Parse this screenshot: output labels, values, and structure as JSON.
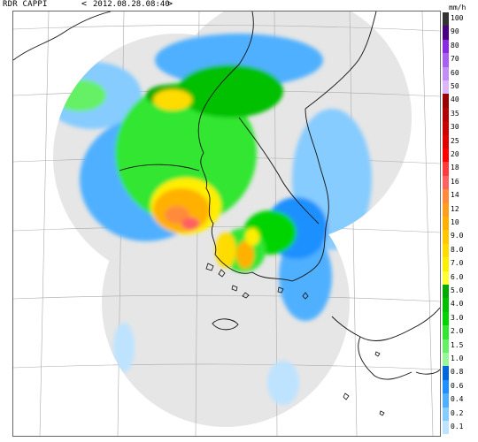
{
  "header": {
    "title": "RDR CAPPI",
    "prev_symbol": "<",
    "timestamp": "2012.08.28.08:40",
    "next_symbol": ">"
  },
  "legend": {
    "unit": "mm/h",
    "levels": [
      {
        "label": "100",
        "color": "#333333"
      },
      {
        "label": "90",
        "color": "#4b0082"
      },
      {
        "label": "80",
        "color": "#8a2be2"
      },
      {
        "label": "70",
        "color": "#a95ff0"
      },
      {
        "label": "60",
        "color": "#c48cf5"
      },
      {
        "label": "50",
        "color": "#dbb6f9"
      },
      {
        "label": "40",
        "color": "#990000"
      },
      {
        "label": "35",
        "color": "#b30000"
      },
      {
        "label": "30",
        "color": "#cc0000"
      },
      {
        "label": "25",
        "color": "#e00000"
      },
      {
        "label": "20",
        "color": "#ff0000"
      },
      {
        "label": "18",
        "color": "#ff3a3a"
      },
      {
        "label": "16",
        "color": "#ff6060"
      },
      {
        "label": "14",
        "color": "#ff8a3a"
      },
      {
        "label": "12",
        "color": "#ff9e1a"
      },
      {
        "label": "10",
        "color": "#ffb000"
      },
      {
        "label": "9.0",
        "color": "#ffc800"
      },
      {
        "label": "8.0",
        "color": "#ffdc00"
      },
      {
        "label": "7.0",
        "color": "#ffee00"
      },
      {
        "label": "6.0",
        "color": "#ffff33"
      },
      {
        "label": "5.0",
        "color": "#00aa00"
      },
      {
        "label": "4.0",
        "color": "#00c000"
      },
      {
        "label": "3.0",
        "color": "#00d400"
      },
      {
        "label": "2.0",
        "color": "#33e633"
      },
      {
        "label": "1.5",
        "color": "#66f066"
      },
      {
        "label": "1.0",
        "color": "#99f599"
      },
      {
        "label": "0.8",
        "color": "#0066dd"
      },
      {
        "label": "0.6",
        "color": "#1e90ff"
      },
      {
        "label": "0.4",
        "color": "#4fb0ff"
      },
      {
        "label": "0.2",
        "color": "#86ccff"
      },
      {
        "label": "0.1",
        "color": "#bde3ff"
      }
    ]
  }
}
